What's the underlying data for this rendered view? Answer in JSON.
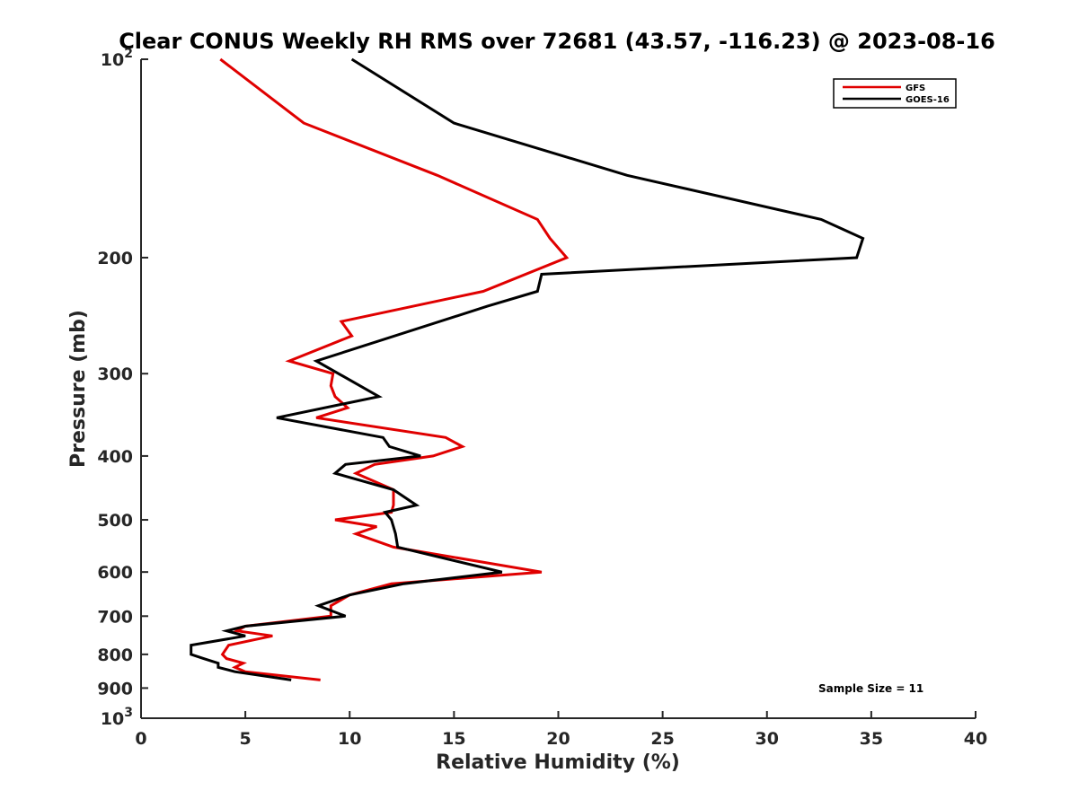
{
  "chart_data": {
    "type": "line",
    "title": "Clear CONUS Weekly RH RMS over 72681 (43.57, -116.23) @ 2023-08-16",
    "xlabel": "Relative Humidity (%)",
    "ylabel": "Pressure (mb)",
    "xlim": [
      0,
      40
    ],
    "ylim": [
      100,
      1000
    ],
    "y_scale": "log",
    "y_reversed": true,
    "grid": false,
    "legend_position": "top-right",
    "x_ticks": [
      0,
      5,
      10,
      15,
      20,
      25,
      30,
      35,
      40
    ],
    "x_tick_labels": [
      "0",
      "5",
      "10",
      "15",
      "20",
      "25",
      "30",
      "35",
      "40"
    ],
    "y_ticks": [
      100,
      200,
      300,
      400,
      500,
      600,
      700,
      800,
      900,
      1000
    ],
    "y_tick_labels": [
      {
        "base": "10",
        "exp": "2"
      },
      {
        "base": "200",
        "exp": ""
      },
      {
        "base": "300",
        "exp": ""
      },
      {
        "base": "400",
        "exp": ""
      },
      {
        "base": "500",
        "exp": ""
      },
      {
        "base": "600",
        "exp": ""
      },
      {
        "base": "700",
        "exp": ""
      },
      {
        "base": "800",
        "exp": ""
      },
      {
        "base": "900",
        "exp": ""
      },
      {
        "base": "10",
        "exp": "3"
      }
    ],
    "series": [
      {
        "name": "GFS",
        "color": "#e00000",
        "points": [
          [
            3.8,
            100
          ],
          [
            7.8,
            125
          ],
          [
            14.2,
            150
          ],
          [
            19.0,
            175
          ],
          [
            19.6,
            187
          ],
          [
            20.4,
            200
          ],
          [
            16.4,
            225
          ],
          [
            9.6,
            250
          ],
          [
            10.1,
            263
          ],
          [
            7.1,
            287
          ],
          [
            9.2,
            300
          ],
          [
            9.1,
            313
          ],
          [
            9.3,
            325
          ],
          [
            9.9,
            338
          ],
          [
            8.4,
            350
          ],
          [
            14.6,
            375
          ],
          [
            15.4,
            387
          ],
          [
            14.0,
            400
          ],
          [
            11.2,
            412
          ],
          [
            10.3,
            425
          ],
          [
            12.1,
            450
          ],
          [
            12.1,
            475
          ],
          [
            12.0,
            487
          ],
          [
            9.3,
            500
          ],
          [
            11.3,
            512
          ],
          [
            10.3,
            525
          ],
          [
            12.1,
            550
          ],
          [
            19.2,
            600
          ],
          [
            12.0,
            625
          ],
          [
            10.0,
            650
          ],
          [
            9.1,
            675
          ],
          [
            9.1,
            700
          ],
          [
            5.0,
            725
          ],
          [
            4.6,
            737
          ],
          [
            6.3,
            750
          ],
          [
            4.2,
            775
          ],
          [
            3.9,
            800
          ],
          [
            4.1,
            812
          ],
          [
            4.9,
            825
          ],
          [
            4.5,
            837
          ],
          [
            5.0,
            850
          ],
          [
            8.6,
            875
          ]
        ]
      },
      {
        "name": "GOES-16",
        "color": "#000000",
        "points": [
          [
            10.1,
            100
          ],
          [
            15.0,
            125
          ],
          [
            23.3,
            150
          ],
          [
            32.6,
            175
          ],
          [
            34.6,
            187
          ],
          [
            34.3,
            200
          ],
          [
            19.2,
            212
          ],
          [
            19.0,
            225
          ],
          [
            16.6,
            237
          ],
          [
            8.4,
            287
          ],
          [
            11.4,
            325
          ],
          [
            6.5,
            350
          ],
          [
            11.6,
            375
          ],
          [
            11.9,
            387
          ],
          [
            13.4,
            400
          ],
          [
            9.8,
            412
          ],
          [
            9.3,
            425
          ],
          [
            12.1,
            450
          ],
          [
            13.2,
            475
          ],
          [
            11.7,
            487
          ],
          [
            12.0,
            500
          ],
          [
            12.2,
            525
          ],
          [
            12.3,
            550
          ],
          [
            17.3,
            600
          ],
          [
            12.6,
            625
          ],
          [
            10.0,
            650
          ],
          [
            8.5,
            675
          ],
          [
            9.8,
            700
          ],
          [
            5.0,
            725
          ],
          [
            4.1,
            737
          ],
          [
            5.0,
            750
          ],
          [
            2.4,
            775
          ],
          [
            2.4,
            800
          ],
          [
            3.0,
            812
          ],
          [
            3.7,
            825
          ],
          [
            3.7,
            837
          ],
          [
            4.5,
            850
          ],
          [
            7.2,
            875
          ]
        ]
      }
    ],
    "annotation": "Sample Size = 11"
  }
}
